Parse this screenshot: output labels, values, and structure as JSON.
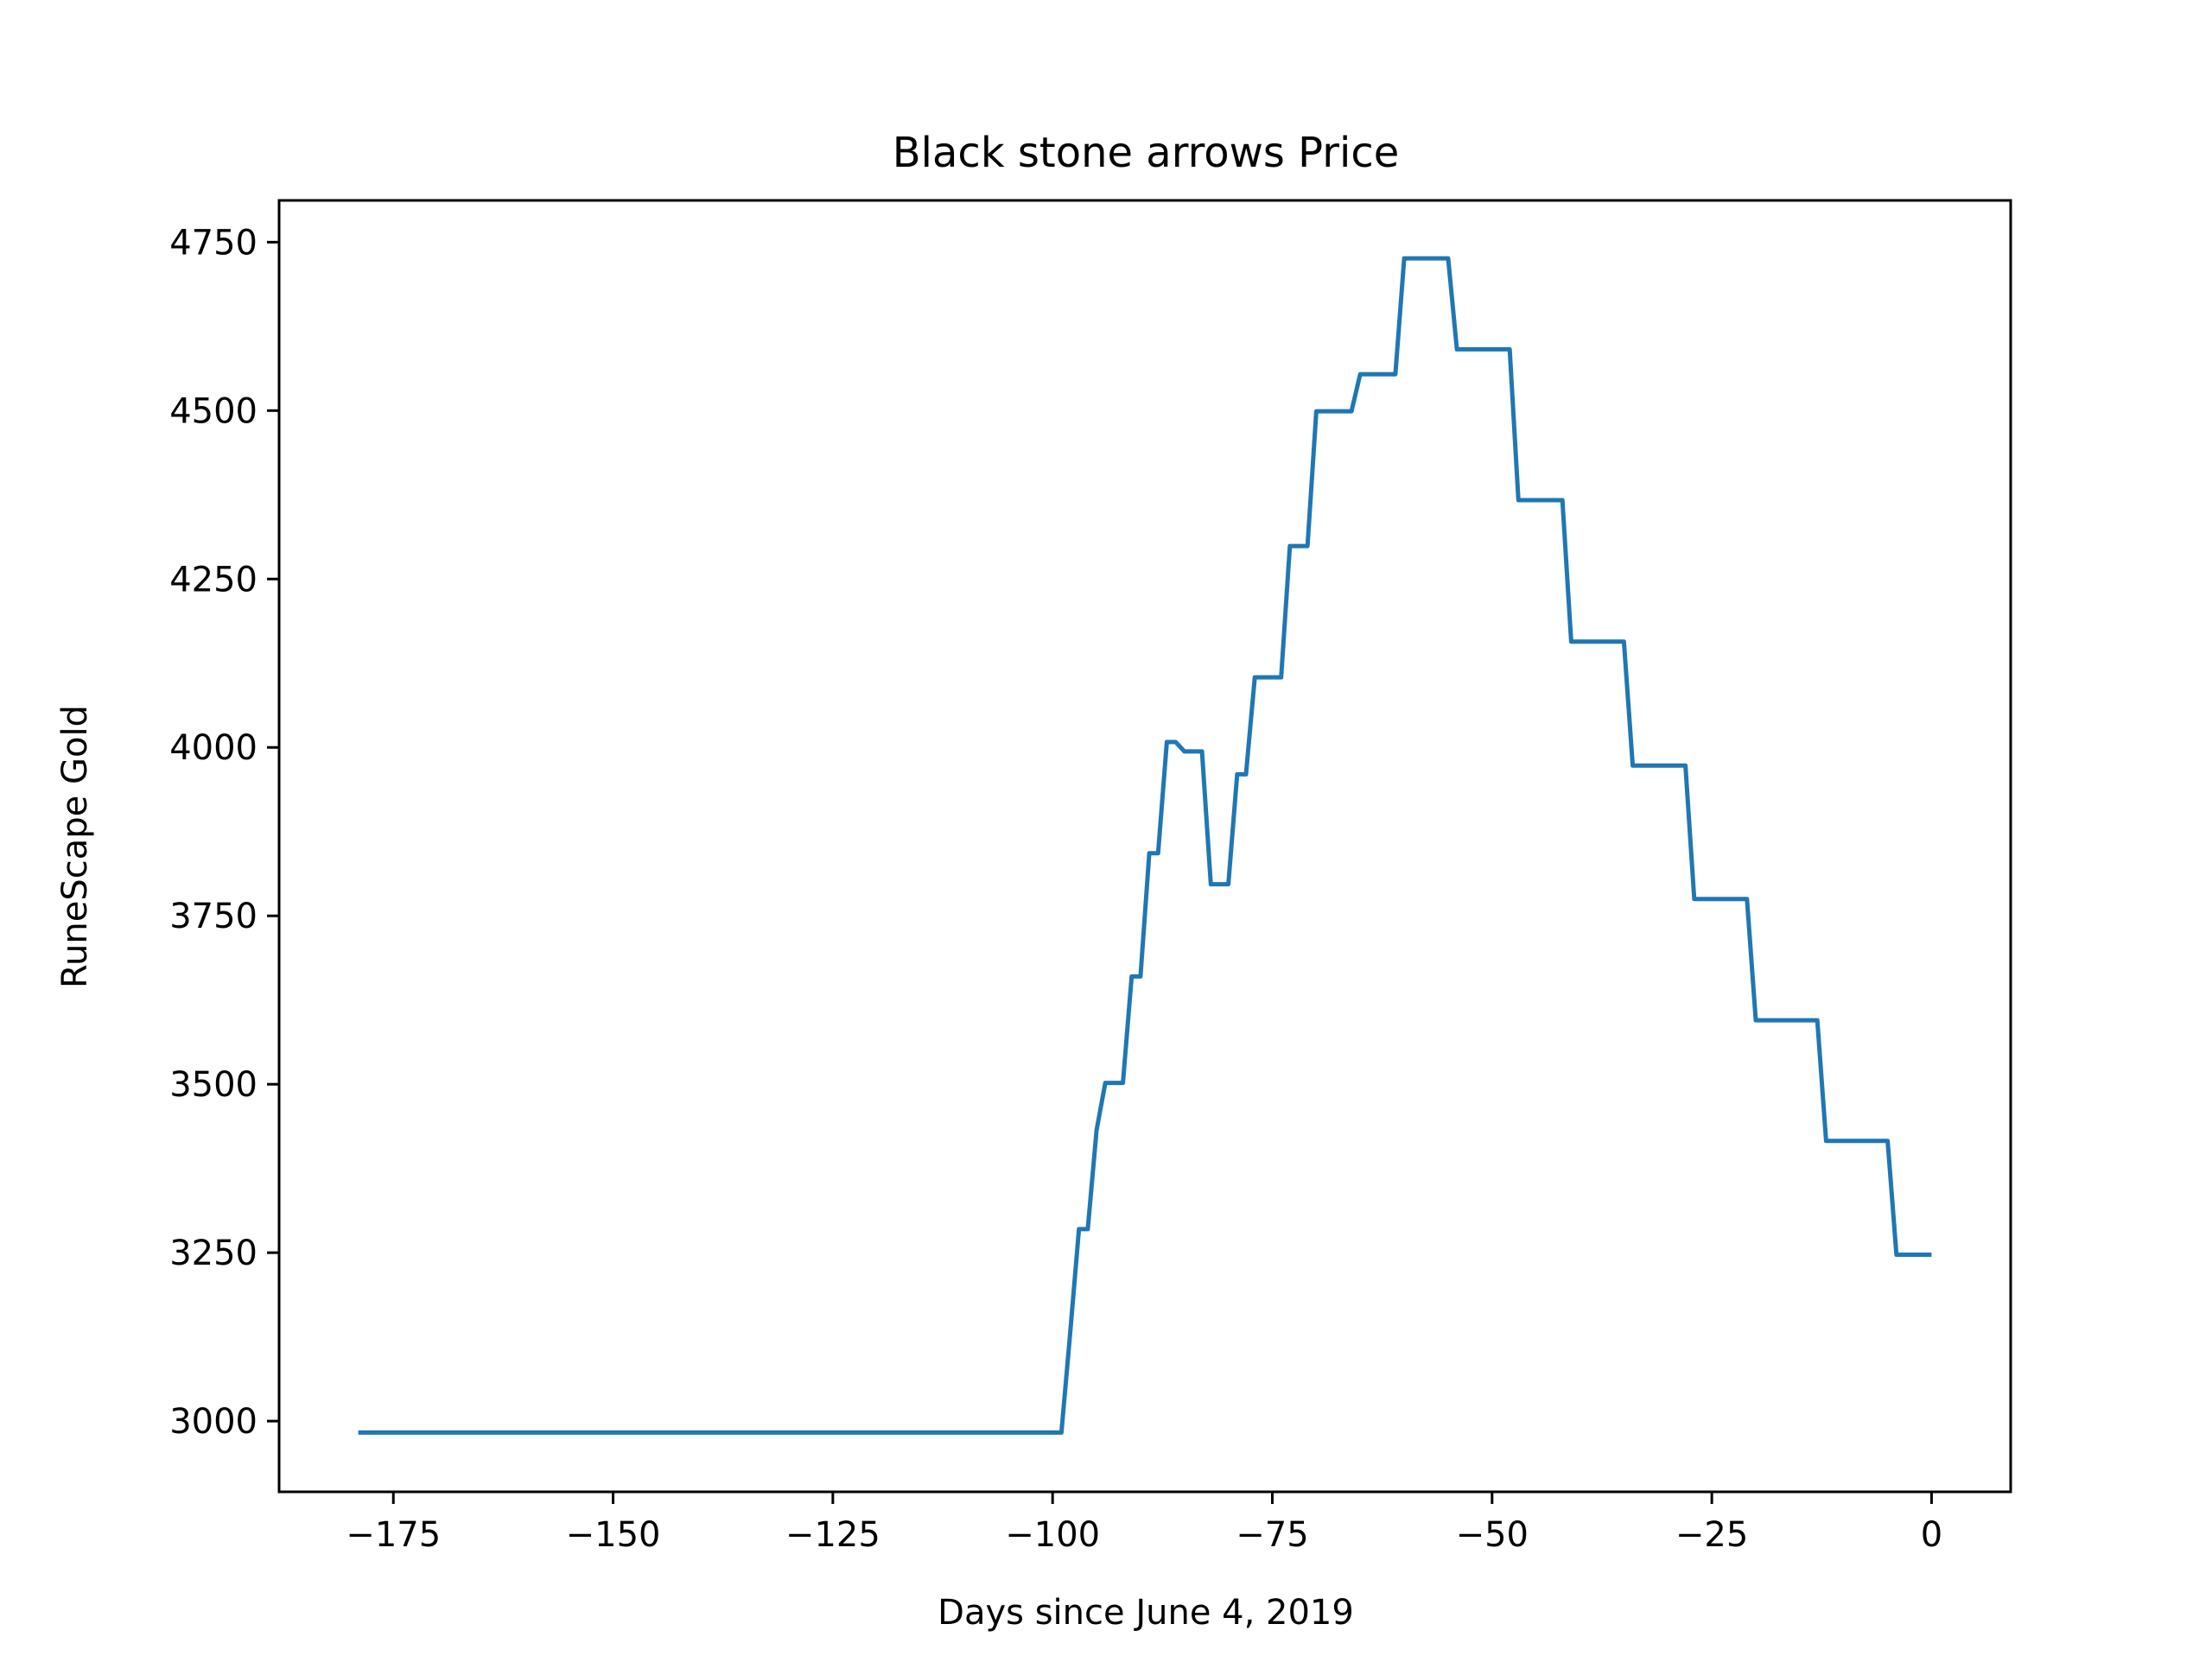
{
  "chart_data": {
    "type": "line",
    "title": "Black stone arrows Price",
    "xlabel": "Days since June 4, 2019",
    "ylabel": "RuneScape Gold",
    "xlim": [
      -188,
      9
    ],
    "ylim": [
      2895,
      4812
    ],
    "grid": false,
    "x_ticks": [
      -175,
      -150,
      -125,
      -100,
      -75,
      -50,
      -25,
      0
    ],
    "x_tick_labels": [
      "−175",
      "−150",
      "−125",
      "−100",
      "−75",
      "−50",
      "−25",
      "0"
    ],
    "y_ticks": [
      3000,
      3250,
      3500,
      3750,
      4000,
      4250,
      4500,
      4750
    ],
    "y_tick_labels": [
      "3000",
      "3250",
      "3500",
      "3750",
      "4000",
      "4250",
      "4500",
      "4750"
    ],
    "series": [
      {
        "color": "#1f77b4",
        "x": [
          -179,
          -99,
          -98,
          -97,
          -96,
          -95,
          -94,
          -92,
          -91,
          -90,
          -89,
          -88,
          -87,
          -86,
          -85,
          -83,
          -82,
          -80,
          -79,
          -78,
          -77,
          -74,
          -73,
          -71,
          -70,
          -66,
          -65,
          -61,
          -60,
          -55,
          -54,
          -48,
          -47,
          -42,
          -41,
          -35,
          -34,
          -28,
          -27,
          -21,
          -20,
          -13,
          -12,
          -5,
          -4,
          0
        ],
        "y": [
          2983,
          2983,
          3130,
          3285,
          3285,
          3432,
          3502,
          3502,
          3660,
          3660,
          3843,
          3843,
          4008,
          4008,
          3994,
          3994,
          3797,
          3797,
          3960,
          3960,
          4104,
          4104,
          4299,
          4299,
          4499,
          4499,
          4554,
          4554,
          4726,
          4726,
          4591,
          4591,
          4367,
          4367,
          4157,
          4157,
          3973,
          3973,
          3775,
          3775,
          3595,
          3595,
          3416,
          3416,
          3247,
          3247
        ]
      }
    ]
  }
}
